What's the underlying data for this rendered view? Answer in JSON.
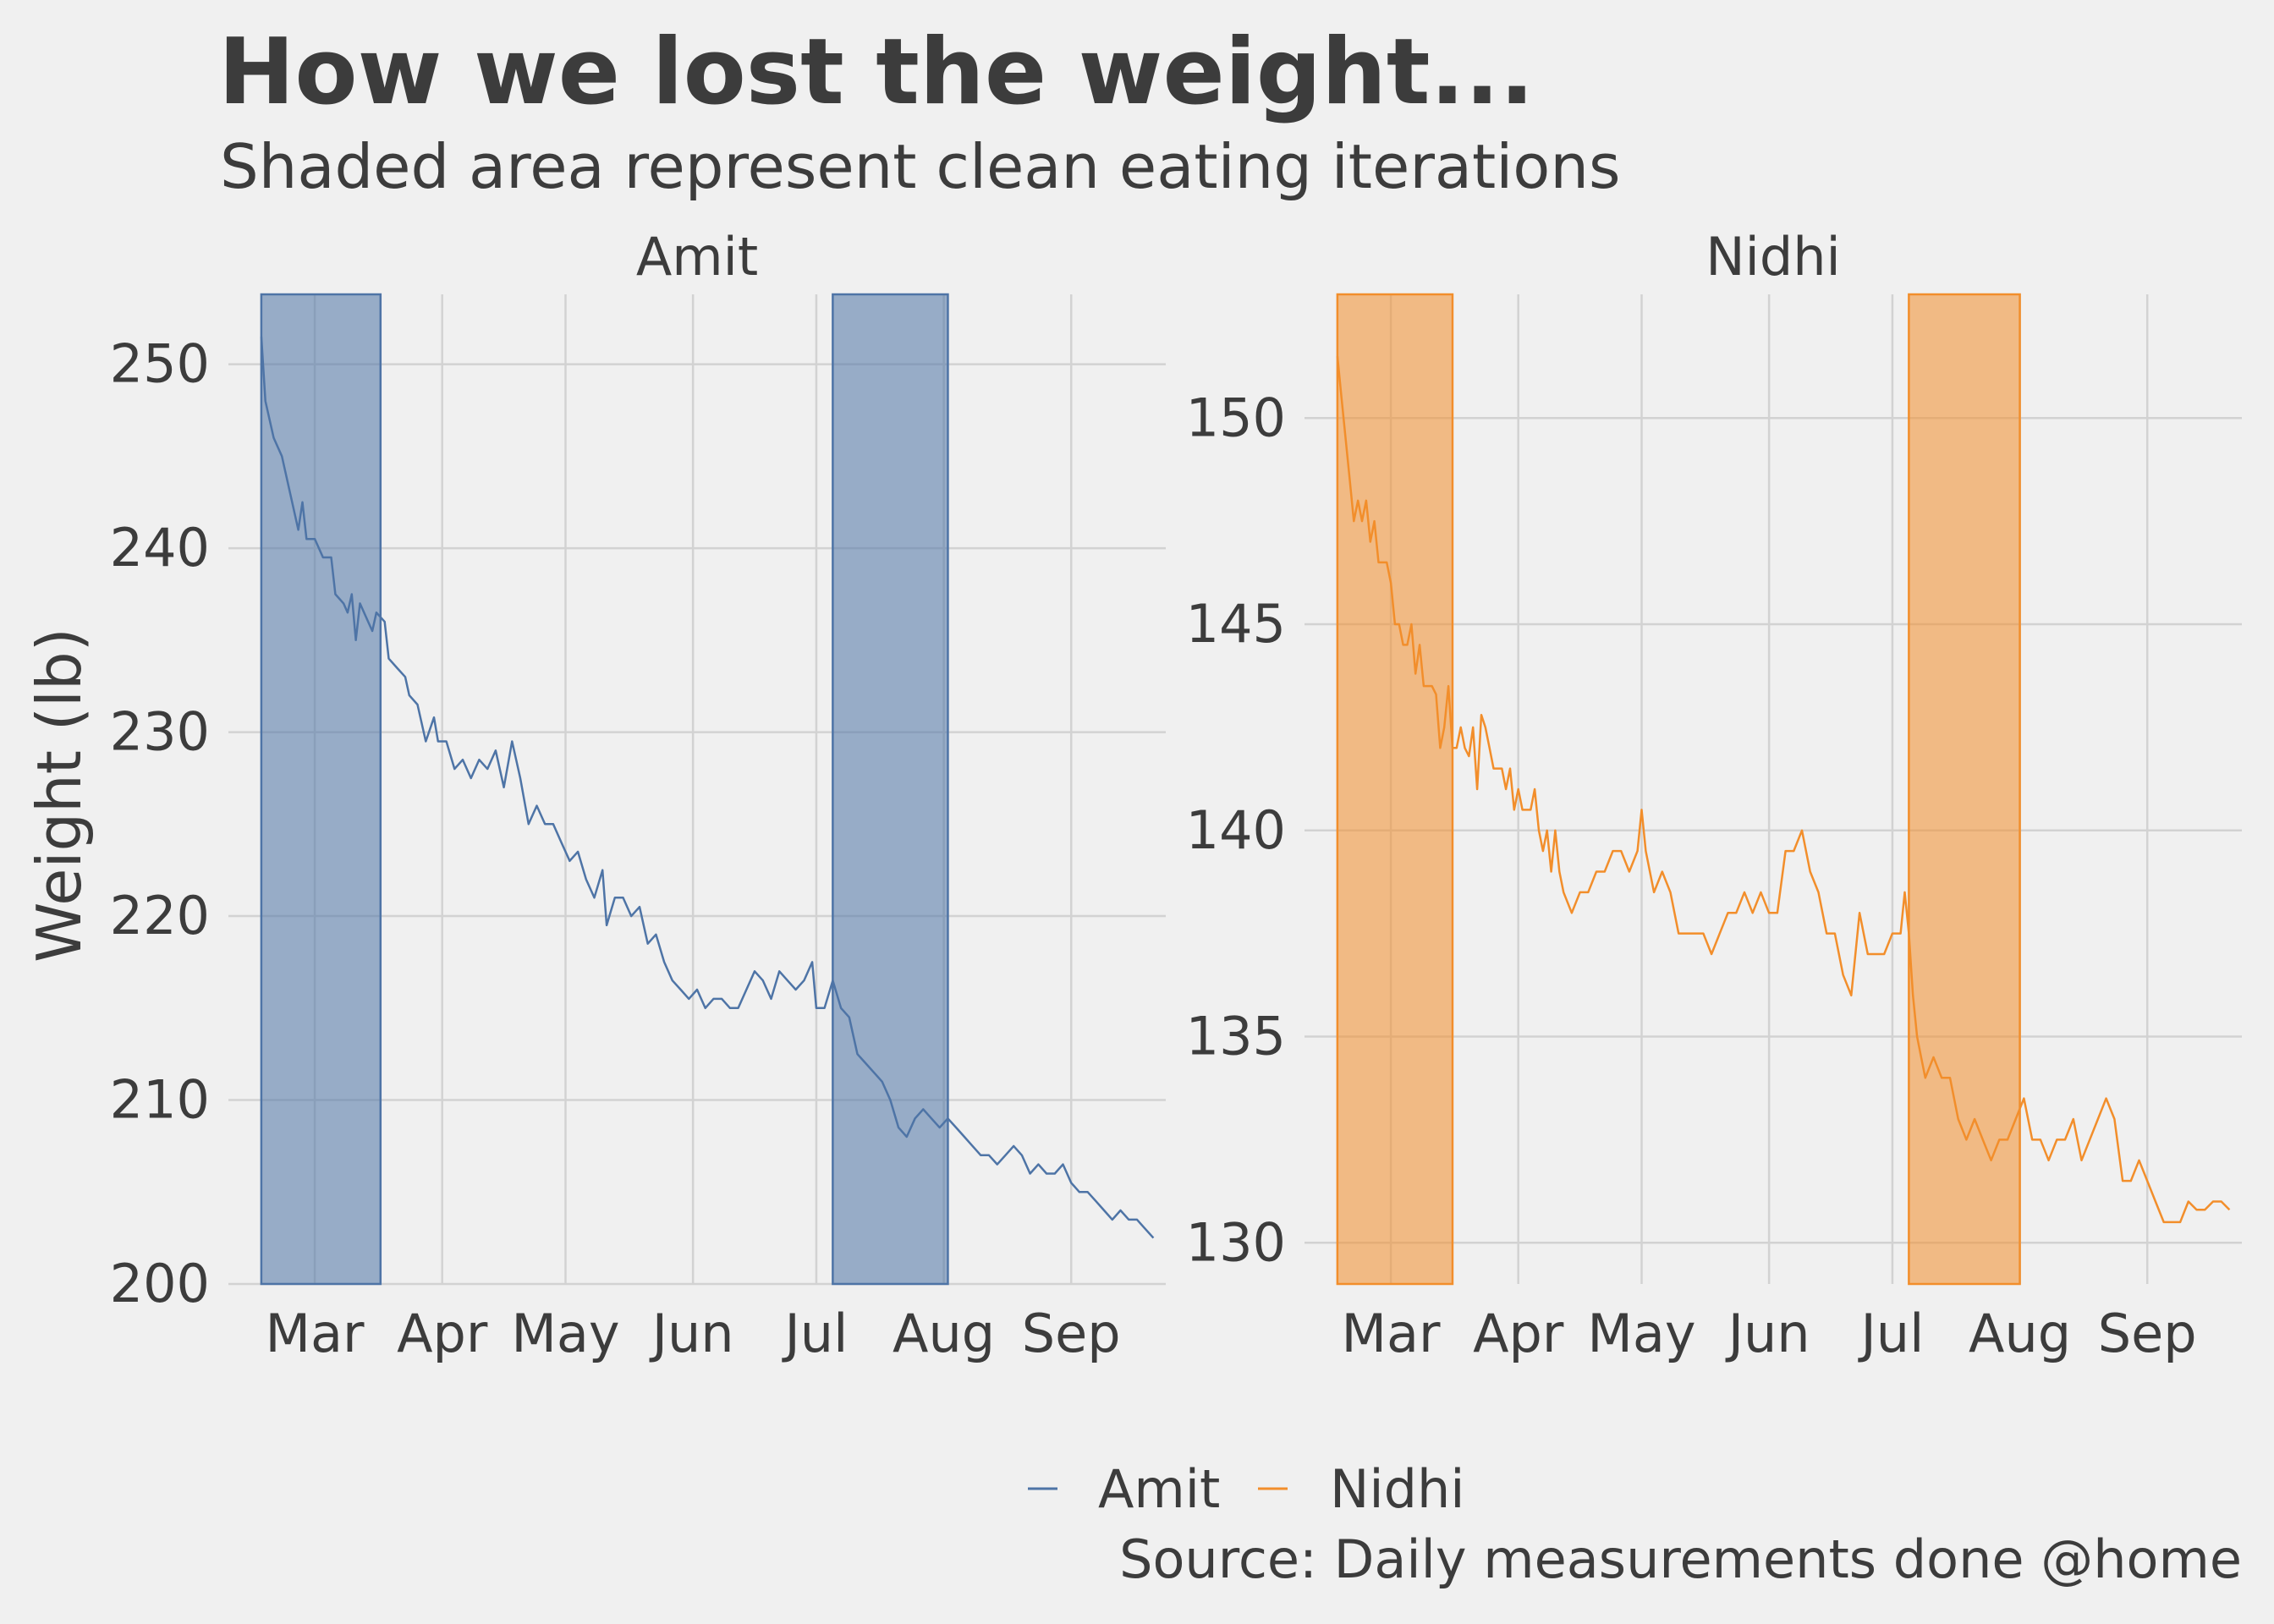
{
  "chart_data": {
    "type": "line",
    "title": "How we lost the weight...",
    "subtitle": "Shaded area represent clean eating iterations",
    "ylabel": "Weight (lb)",
    "caption": "Source: Daily measurements done @home",
    "legend": [
      {
        "name": "Amit",
        "color": "#4e74a6"
      },
      {
        "name": "Nidhi",
        "color": "#f28e2b"
      }
    ],
    "x_tick_labels": [
      "Mar",
      "Apr",
      "May",
      "Jun",
      "Jul",
      "Aug",
      "Sep"
    ],
    "x_tick_days": [
      60,
      91,
      121,
      152,
      182,
      213,
      244
    ],
    "facets": [
      {
        "name": "Amit",
        "color": "#4e74a6",
        "fill": "rgba(78,116,166,0.55)",
        "xlim": [
          39,
          267
        ],
        "ylim": [
          200,
          253.8
        ],
        "yticks": [
          200,
          210,
          220,
          230,
          240,
          250
        ],
        "shaded_periods": [
          [
            47,
            76
          ],
          [
            186,
            214
          ]
        ],
        "series": [
          [
            47,
            251.5
          ],
          [
            48,
            248
          ],
          [
            49,
            247
          ],
          [
            50,
            246
          ],
          [
            52,
            245
          ],
          [
            54,
            243
          ],
          [
            56,
            241
          ],
          [
            57,
            242.5
          ],
          [
            58,
            240.5
          ],
          [
            60,
            240.5
          ],
          [
            62,
            239.5
          ],
          [
            64,
            239.5
          ],
          [
            65,
            237.5
          ],
          [
            67,
            237
          ],
          [
            68,
            236.5
          ],
          [
            69,
            237.5
          ],
          [
            70,
            235
          ],
          [
            71,
            237
          ],
          [
            73,
            236
          ],
          [
            74,
            235.5
          ],
          [
            75,
            236.5
          ],
          [
            77,
            236
          ],
          [
            78,
            234
          ],
          [
            80,
            233.5
          ],
          [
            82,
            233
          ],
          [
            83,
            232
          ],
          [
            85,
            231.5
          ],
          [
            87,
            229.5
          ],
          [
            89,
            230.8
          ],
          [
            90,
            229.5
          ],
          [
            92,
            229.5
          ],
          [
            94,
            228
          ],
          [
            96,
            228.5
          ],
          [
            98,
            227.5
          ],
          [
            100,
            228.5
          ],
          [
            102,
            228
          ],
          [
            104,
            229
          ],
          [
            106,
            227
          ],
          [
            108,
            229.5
          ],
          [
            110,
            227.5
          ],
          [
            112,
            225
          ],
          [
            114,
            226
          ],
          [
            116,
            225
          ],
          [
            118,
            225
          ],
          [
            120,
            224
          ],
          [
            122,
            223
          ],
          [
            124,
            223.5
          ],
          [
            126,
            222
          ],
          [
            128,
            221
          ],
          [
            130,
            222.5
          ],
          [
            131,
            219.5
          ],
          [
            133,
            221
          ],
          [
            135,
            221
          ],
          [
            137,
            220
          ],
          [
            139,
            220.5
          ],
          [
            141,
            218.5
          ],
          [
            143,
            219
          ],
          [
            145,
            217.5
          ],
          [
            147,
            216.5
          ],
          [
            149,
            216
          ],
          [
            151,
            215.5
          ],
          [
            153,
            216
          ],
          [
            155,
            215
          ],
          [
            157,
            215.5
          ],
          [
            159,
            215.5
          ],
          [
            161,
            215
          ],
          [
            163,
            215
          ],
          [
            165,
            216
          ],
          [
            167,
            217
          ],
          [
            169,
            216.5
          ],
          [
            171,
            215.5
          ],
          [
            173,
            217
          ],
          [
            175,
            216.5
          ],
          [
            177,
            216
          ],
          [
            179,
            216.5
          ],
          [
            181,
            217.5
          ],
          [
            182,
            215
          ],
          [
            184,
            215
          ],
          [
            186,
            216.5
          ],
          [
            188,
            215
          ],
          [
            190,
            214.5
          ],
          [
            192,
            212.5
          ],
          [
            194,
            212
          ],
          [
            196,
            211.5
          ],
          [
            198,
            211
          ],
          [
            200,
            210
          ],
          [
            202,
            208.5
          ],
          [
            204,
            208
          ],
          [
            206,
            209
          ],
          [
            208,
            209.5
          ],
          [
            210,
            209
          ],
          [
            212,
            208.5
          ],
          [
            214,
            209
          ],
          [
            216,
            208.5
          ],
          [
            218,
            208
          ],
          [
            220,
            207.5
          ],
          [
            222,
            207
          ],
          [
            224,
            207
          ],
          [
            226,
            206.5
          ],
          [
            228,
            207
          ],
          [
            230,
            207.5
          ],
          [
            232,
            207
          ],
          [
            234,
            206
          ],
          [
            236,
            206.5
          ],
          [
            238,
            206
          ],
          [
            240,
            206
          ],
          [
            242,
            206.5
          ],
          [
            244,
            205.5
          ],
          [
            246,
            205
          ],
          [
            248,
            205
          ],
          [
            250,
            204.5
          ],
          [
            252,
            204
          ],
          [
            254,
            203.5
          ],
          [
            256,
            204
          ],
          [
            258,
            203.5
          ],
          [
            260,
            203.5
          ],
          [
            262,
            203
          ],
          [
            264,
            202.5
          ]
        ]
      },
      {
        "name": "Nidhi",
        "color": "#f28e2b",
        "fill": "rgba(242,142,43,0.55)",
        "xlim": [
          39,
          267
        ],
        "ylim": [
          129,
          153
        ],
        "yticks": [
          130,
          135,
          140,
          145,
          150
        ],
        "shaded_periods": [
          [
            47,
            75
          ],
          [
            186,
            213
          ]
        ],
        "series": [
          [
            47,
            151.5
          ],
          [
            48,
            150.5
          ],
          [
            49,
            149.5
          ],
          [
            50,
            148.5
          ],
          [
            51,
            147.5
          ],
          [
            52,
            148
          ],
          [
            53,
            147.5
          ],
          [
            54,
            148
          ],
          [
            55,
            147
          ],
          [
            56,
            147.5
          ],
          [
            57,
            146.5
          ],
          [
            58,
            146.5
          ],
          [
            59,
            146.5
          ],
          [
            60,
            146
          ],
          [
            61,
            145
          ],
          [
            62,
            145
          ],
          [
            63,
            144.5
          ],
          [
            64,
            144.5
          ],
          [
            65,
            145
          ],
          [
            66,
            143.8
          ],
          [
            67,
            144.5
          ],
          [
            68,
            143.5
          ],
          [
            69,
            143.5
          ],
          [
            70,
            143.5
          ],
          [
            71,
            143.3
          ],
          [
            72,
            142
          ],
          [
            73,
            142.5
          ],
          [
            74,
            143.5
          ],
          [
            75,
            142
          ],
          [
            76,
            142
          ],
          [
            77,
            142.5
          ],
          [
            78,
            142
          ],
          [
            79,
            141.8
          ],
          [
            80,
            142.5
          ],
          [
            81,
            141
          ],
          [
            82,
            142.8
          ],
          [
            83,
            142.5
          ],
          [
            84,
            142
          ],
          [
            85,
            141.5
          ],
          [
            86,
            141.5
          ],
          [
            87,
            141.5
          ],
          [
            88,
            141
          ],
          [
            89,
            141.5
          ],
          [
            90,
            140.5
          ],
          [
            91,
            141
          ],
          [
            92,
            140.5
          ],
          [
            94,
            140.5
          ],
          [
            95,
            141
          ],
          [
            96,
            140
          ],
          [
            97,
            139.5
          ],
          [
            98,
            140
          ],
          [
            99,
            139
          ],
          [
            100,
            140
          ],
          [
            101,
            139
          ],
          [
            102,
            138.5
          ],
          [
            104,
            138
          ],
          [
            106,
            138.5
          ],
          [
            108,
            138.5
          ],
          [
            110,
            139
          ],
          [
            112,
            139
          ],
          [
            114,
            139.5
          ],
          [
            116,
            139.5
          ],
          [
            118,
            139
          ],
          [
            120,
            139.5
          ],
          [
            121,
            140.5
          ],
          [
            122,
            139.5
          ],
          [
            124,
            138.5
          ],
          [
            126,
            139
          ],
          [
            128,
            138.5
          ],
          [
            130,
            137.5
          ],
          [
            132,
            137.5
          ],
          [
            134,
            137.5
          ],
          [
            136,
            137.5
          ],
          [
            138,
            137
          ],
          [
            140,
            137.5
          ],
          [
            142,
            138
          ],
          [
            144,
            138
          ],
          [
            146,
            138.5
          ],
          [
            148,
            138
          ],
          [
            150,
            138.5
          ],
          [
            152,
            138
          ],
          [
            154,
            138
          ],
          [
            156,
            139.5
          ],
          [
            158,
            139.5
          ],
          [
            160,
            140
          ],
          [
            162,
            139
          ],
          [
            164,
            138.5
          ],
          [
            166,
            137.5
          ],
          [
            168,
            137.5
          ],
          [
            170,
            136.5
          ],
          [
            172,
            136
          ],
          [
            174,
            138
          ],
          [
            176,
            137
          ],
          [
            178,
            137
          ],
          [
            180,
            137
          ],
          [
            182,
            137.5
          ],
          [
            184,
            137.5
          ],
          [
            185,
            138.5
          ],
          [
            186,
            137.5
          ],
          [
            187,
            136
          ],
          [
            188,
            135
          ],
          [
            189,
            134.5
          ],
          [
            190,
            134
          ],
          [
            192,
            134.5
          ],
          [
            194,
            134
          ],
          [
            196,
            134
          ],
          [
            198,
            133
          ],
          [
            200,
            132.5
          ],
          [
            202,
            133
          ],
          [
            204,
            132.5
          ],
          [
            206,
            132
          ],
          [
            208,
            132.5
          ],
          [
            210,
            132.5
          ],
          [
            212,
            133
          ],
          [
            214,
            133.5
          ],
          [
            216,
            132.5
          ],
          [
            218,
            132.5
          ],
          [
            220,
            132
          ],
          [
            222,
            132.5
          ],
          [
            224,
            132.5
          ],
          [
            226,
            133
          ],
          [
            228,
            132
          ],
          [
            230,
            132.5
          ],
          [
            232,
            133
          ],
          [
            234,
            133.5
          ],
          [
            236,
            133
          ],
          [
            238,
            131.5
          ],
          [
            240,
            131.5
          ],
          [
            242,
            132
          ],
          [
            244,
            131.5
          ],
          [
            246,
            131
          ],
          [
            248,
            130.5
          ],
          [
            250,
            130.5
          ],
          [
            252,
            130.5
          ],
          [
            254,
            131
          ],
          [
            256,
            130.8
          ],
          [
            258,
            130.8
          ],
          [
            260,
            131
          ],
          [
            262,
            131
          ],
          [
            264,
            130.8
          ]
        ]
      }
    ]
  }
}
